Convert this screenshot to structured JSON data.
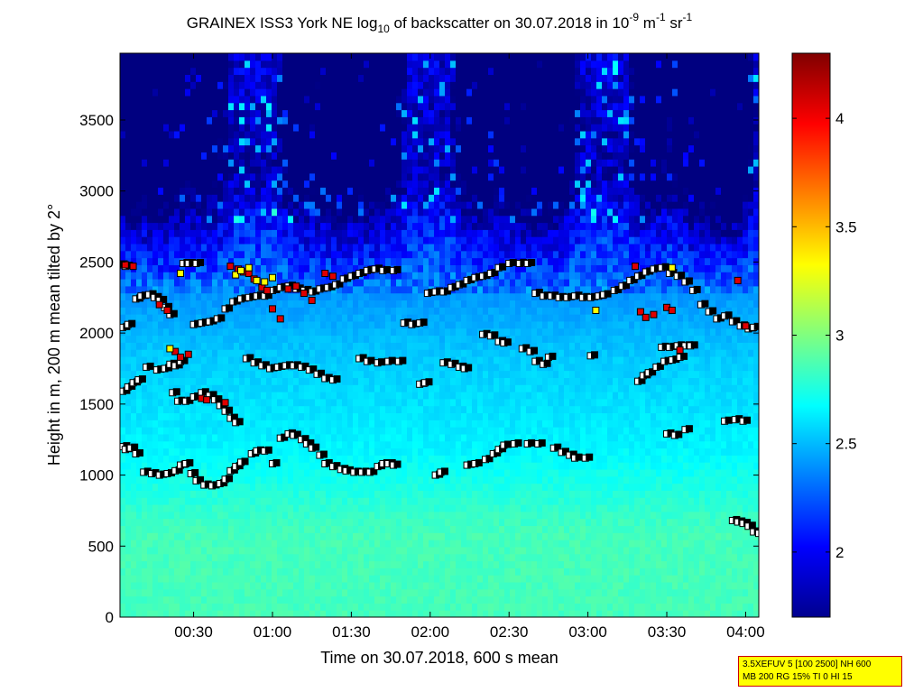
{
  "chart_data": {
    "type": "heatmap",
    "title": {
      "main": "GRAINEX ISS3 York NE log",
      "sub10": "10",
      "rest": " of backscatter on 30.07.2018 in 10",
      "exp1": "-9",
      "unit_m": " m",
      "exp2": "-1",
      "unit_sr": " sr",
      "exp3": "-1"
    },
    "xlabel": "Time on 30.07.2018, 600 s mean",
    "ylabel": "Height in m, 200 m mean tilted by 2°",
    "x_unit": "minutes after 00:00",
    "xlim": [
      2,
      245
    ],
    "ylim": [
      0,
      3970
    ],
    "x_ticks": [
      {
        "value": 30,
        "label": "00:30"
      },
      {
        "value": 60,
        "label": "01:00"
      },
      {
        "value": 90,
        "label": "01:30"
      },
      {
        "value": 120,
        "label": "02:00"
      },
      {
        "value": 150,
        "label": "02:30"
      },
      {
        "value": 180,
        "label": "03:00"
      },
      {
        "value": 210,
        "label": "03:30"
      },
      {
        "value": 240,
        "label": "04:00"
      }
    ],
    "y_ticks": [
      0,
      500,
      1000,
      1500,
      2000,
      2500,
      3000,
      3500
    ],
    "colorbar": {
      "range": [
        1.7,
        4.3
      ],
      "ticks": [
        {
          "value": 2,
          "label": "2"
        },
        {
          "value": 2.5,
          "label": "2.5"
        },
        {
          "value": 3,
          "label": "3"
        },
        {
          "value": 3.5,
          "label": "3.5"
        },
        {
          "value": 4,
          "label": "4"
        }
      ],
      "colormap": "jet"
    },
    "grid": false,
    "backscatter_profile": {
      "description_levels": [
        {
          "height": 0,
          "value": 2.85
        },
        {
          "height": 600,
          "value": 2.85
        },
        {
          "height": 1200,
          "value": 2.65
        },
        {
          "height": 1800,
          "value": 2.55
        },
        {
          "height": 2300,
          "value": 2.4
        },
        {
          "height": 2700,
          "value": 2.2
        },
        {
          "height": 3100,
          "value": 1.9
        },
        {
          "height": 3970,
          "value": 2.0
        }
      ]
    },
    "layer_series": [
      {
        "points": [
          [
            3,
            1200
          ],
          [
            4,
            1180
          ],
          [
            6,
            1190
          ],
          [
            8,
            1150
          ],
          [
            11,
            1020
          ],
          [
            14,
            1010
          ],
          [
            17,
            1000
          ],
          [
            20,
            1010
          ],
          [
            23,
            1030
          ],
          [
            25,
            1070
          ],
          [
            27,
            1080
          ],
          [
            29,
            1010
          ],
          [
            31,
            960
          ],
          [
            34,
            930
          ],
          [
            37,
            925
          ],
          [
            40,
            940
          ],
          [
            42,
            970
          ],
          [
            44,
            1030
          ],
          [
            46,
            1060
          ],
          [
            48,
            1090
          ],
          [
            52,
            1150
          ],
          [
            54,
            1170
          ],
          [
            57,
            1170
          ],
          [
            60,
            1080
          ],
          [
            63,
            1260
          ],
          [
            66,
            1290
          ],
          [
            68,
            1280
          ],
          [
            71,
            1250
          ],
          [
            73,
            1220
          ],
          [
            75,
            1190
          ],
          [
            78,
            1140
          ],
          [
            80,
            1080
          ],
          [
            83,
            1060
          ],
          [
            86,
            1040
          ],
          [
            88,
            1030
          ],
          [
            91,
            1020
          ],
          [
            94,
            1020
          ],
          [
            97,
            1020
          ],
          [
            100,
            1060
          ],
          [
            102,
            1080
          ],
          [
            104,
            1080
          ],
          [
            106,
            1070
          ],
          [
            122,
            1000
          ],
          [
            124,
            1020
          ],
          [
            134,
            1070
          ],
          [
            137,
            1080
          ],
          [
            141,
            1110
          ],
          [
            144,
            1150
          ],
          [
            146,
            1180
          ],
          [
            148,
            1210
          ],
          [
            152,
            1220
          ],
          [
            157,
            1220
          ],
          [
            161,
            1220
          ],
          [
            167,
            1190
          ],
          [
            170,
            1160
          ],
          [
            173,
            1140
          ],
          [
            175,
            1120
          ],
          [
            179,
            1120
          ]
        ]
      },
      {
        "points": [
          [
            3,
            1590
          ],
          [
            5,
            1620
          ],
          [
            7,
            1650
          ],
          [
            9,
            1670
          ],
          [
            12,
            1760
          ],
          [
            16,
            1740
          ],
          [
            19,
            1750
          ],
          [
            21,
            1780
          ],
          [
            23,
            1770
          ],
          [
            25,
            1800
          ],
          [
            22,
            1580
          ],
          [
            24,
            1520
          ],
          [
            27,
            1520
          ],
          [
            30,
            1550
          ],
          [
            33,
            1580
          ],
          [
            36,
            1560
          ],
          [
            38,
            1530
          ],
          [
            40,
            1490
          ],
          [
            42,
            1450
          ],
          [
            44,
            1400
          ],
          [
            46,
            1370
          ],
          [
            50,
            1820
          ],
          [
            53,
            1790
          ],
          [
            56,
            1770
          ],
          [
            59,
            1750
          ],
          [
            62,
            1760
          ],
          [
            65,
            1770
          ],
          [
            68,
            1770
          ],
          [
            71,
            1760
          ],
          [
            74,
            1740
          ],
          [
            77,
            1710
          ],
          [
            80,
            1680
          ],
          [
            83,
            1670
          ],
          [
            93,
            1820
          ],
          [
            96,
            1800
          ],
          [
            100,
            1790
          ],
          [
            104,
            1800
          ],
          [
            108,
            1800
          ],
          [
            116,
            1640
          ],
          [
            118,
            1650
          ],
          [
            125,
            1790
          ],
          [
            128,
            1780
          ],
          [
            131,
            1760
          ],
          [
            133,
            1750
          ],
          [
            165,
            1830
          ],
          [
            181,
            1840
          ],
          [
            199,
            1660
          ],
          [
            201,
            1700
          ],
          [
            203,
            1720
          ],
          [
            206,
            1760
          ],
          [
            209,
            1800
          ],
          [
            212,
            1810
          ],
          [
            215,
            1830
          ],
          [
            208,
            1900
          ],
          [
            211,
            1900
          ],
          [
            214,
            1910
          ],
          [
            217,
            1910
          ],
          [
            219,
            1910
          ],
          [
            232,
            1380
          ],
          [
            236,
            1390
          ],
          [
            239,
            1380
          ]
        ]
      },
      {
        "points": [
          [
            3,
            2040
          ],
          [
            5,
            2060
          ],
          [
            8,
            2240
          ],
          [
            10,
            2260
          ],
          [
            13,
            2270
          ],
          [
            15,
            2250
          ],
          [
            17,
            2230
          ],
          [
            19,
            2180
          ],
          [
            21,
            2130
          ],
          [
            30,
            2060
          ],
          [
            33,
            2070
          ],
          [
            36,
            2080
          ],
          [
            39,
            2100
          ],
          [
            42,
            2170
          ],
          [
            45,
            2220
          ],
          [
            48,
            2240
          ],
          [
            51,
            2250
          ],
          [
            54,
            2260
          ],
          [
            57,
            2260
          ],
          [
            60,
            2300
          ],
          [
            63,
            2320
          ],
          [
            66,
            2330
          ],
          [
            69,
            2310
          ],
          [
            72,
            2300
          ],
          [
            75,
            2290
          ],
          [
            78,
            2310
          ],
          [
            81,
            2320
          ],
          [
            84,
            2340
          ],
          [
            87,
            2380
          ],
          [
            90,
            2400
          ],
          [
            93,
            2420
          ],
          [
            96,
            2440
          ],
          [
            99,
            2450
          ],
          [
            102,
            2440
          ],
          [
            106,
            2440
          ],
          [
            110,
            2070
          ],
          [
            113,
            2060
          ],
          [
            116,
            2070
          ],
          [
            119,
            2280
          ],
          [
            122,
            2290
          ],
          [
            125,
            2290
          ],
          [
            128,
            2320
          ],
          [
            131,
            2340
          ],
          [
            134,
            2370
          ],
          [
            137,
            2390
          ],
          [
            140,
            2400
          ],
          [
            143,
            2420
          ],
          [
            146,
            2460
          ],
          [
            150,
            2490
          ],
          [
            154,
            2490
          ],
          [
            157,
            2490
          ],
          [
            160,
            2280
          ],
          [
            163,
            2260
          ],
          [
            166,
            2260
          ],
          [
            169,
            2250
          ],
          [
            172,
            2250
          ],
          [
            175,
            2260
          ],
          [
            178,
            2250
          ],
          [
            181,
            2250
          ],
          [
            184,
            2260
          ],
          [
            186,
            2270
          ],
          [
            190,
            2300
          ],
          [
            193,
            2330
          ],
          [
            196,
            2370
          ],
          [
            199,
            2400
          ],
          [
            202,
            2430
          ],
          [
            205,
            2450
          ],
          [
            208,
            2460
          ],
          [
            211,
            2420
          ],
          [
            214,
            2400
          ],
          [
            217,
            2360
          ],
          [
            220,
            2300
          ],
          [
            223,
            2200
          ],
          [
            226,
            2150
          ],
          [
            229,
            2100
          ],
          [
            232,
            2120
          ],
          [
            235,
            2080
          ],
          [
            238,
            2050
          ],
          [
            241,
            2030
          ],
          [
            243,
            2040
          ]
        ]
      },
      {
        "points": [
          [
            2,
            2480
          ],
          [
            4,
            2470
          ],
          [
            26,
            2490
          ],
          [
            28,
            2490
          ],
          [
            31,
            2490
          ],
          [
            140,
            1990
          ],
          [
            143,
            1980
          ],
          [
            146,
            1940
          ],
          [
            148,
            1930
          ],
          [
            155,
            1890
          ],
          [
            158,
            1870
          ],
          [
            160,
            1800
          ],
          [
            163,
            1780
          ],
          [
            235,
            680
          ],
          [
            237,
            670
          ],
          [
            239,
            660
          ],
          [
            241,
            640
          ],
          [
            243,
            600
          ],
          [
            245,
            590
          ],
          [
            210,
            1290
          ],
          [
            213,
            1280
          ],
          [
            217,
            1320
          ]
        ]
      }
    ],
    "red_markers": [
      [
        4,
        2480
      ],
      [
        7,
        2470
      ],
      [
        17,
        2200
      ],
      [
        20,
        2160
      ],
      [
        23,
        1870
      ],
      [
        25,
        1830
      ],
      [
        28,
        1850
      ],
      [
        33,
        1540
      ],
      [
        35,
        1530
      ],
      [
        42,
        1510
      ],
      [
        44,
        2470
      ],
      [
        47,
        2450
      ],
      [
        49,
        2430
      ],
      [
        51,
        2420
      ],
      [
        53,
        2380
      ],
      [
        56,
        2320
      ],
      [
        58,
        2300
      ],
      [
        60,
        2170
      ],
      [
        63,
        2100
      ],
      [
        66,
        2310
      ],
      [
        69,
        2330
      ],
      [
        72,
        2280
      ],
      [
        75,
        2230
      ],
      [
        80,
        2420
      ],
      [
        83,
        2400
      ],
      [
        198,
        2470
      ],
      [
        200,
        2150
      ],
      [
        202,
        2110
      ],
      [
        205,
        2130
      ],
      [
        210,
        2180
      ],
      [
        212,
        2160
      ],
      [
        215,
        1880
      ],
      [
        237,
        2370
      ],
      [
        240,
        2050
      ]
    ],
    "yellow_markers": [
      [
        21,
        1890
      ],
      [
        25,
        2420
      ],
      [
        46,
        2410
      ],
      [
        48,
        2440
      ],
      [
        51,
        2460
      ],
      [
        54,
        2370
      ],
      [
        57,
        2360
      ],
      [
        60,
        2390
      ],
      [
        183,
        2160
      ],
      [
        212,
        2460
      ]
    ]
  },
  "info_box": {
    "line1": "3.5XEFUV 5 [100 2500] NH 600",
    "line2": "MB 200 RG 15% TI 0 HI 15"
  }
}
